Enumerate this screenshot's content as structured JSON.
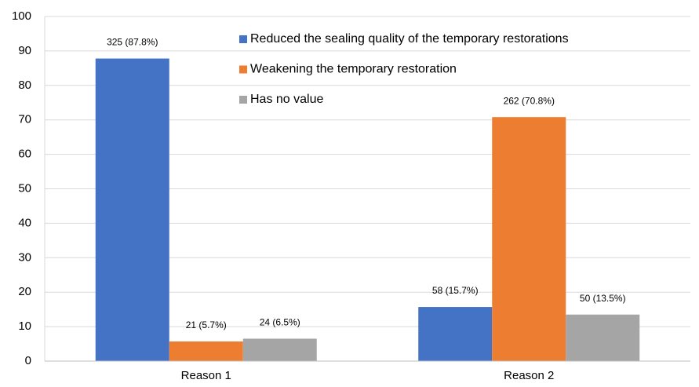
{
  "chart_data": {
    "type": "bar",
    "categories": [
      "Reason 1",
      "Reason 2"
    ],
    "series": [
      {
        "name": "Reduced the sealing quality of the temporary restorations",
        "color": "#4472c4",
        "values": [
          87.8,
          15.7
        ],
        "value_labels": [
          "325 (87.8%)",
          "58 (15.7%)"
        ]
      },
      {
        "name": "Weakening the temporary restoration",
        "color": "#ed7d31",
        "values": [
          5.7,
          70.8
        ],
        "value_labels": [
          "21 (5.7%)",
          "262 (70.8%)"
        ]
      },
      {
        "name": "Has no value",
        "color": "#a5a5a5",
        "values": [
          6.5,
          13.5
        ],
        "value_labels": [
          "24 (6.5%)",
          "50 (13.5%)"
        ]
      }
    ],
    "ylim": [
      0,
      100
    ],
    "yticks": [
      0,
      10,
      20,
      30,
      40,
      50,
      60,
      70,
      80,
      90,
      100
    ],
    "grid": true
  }
}
